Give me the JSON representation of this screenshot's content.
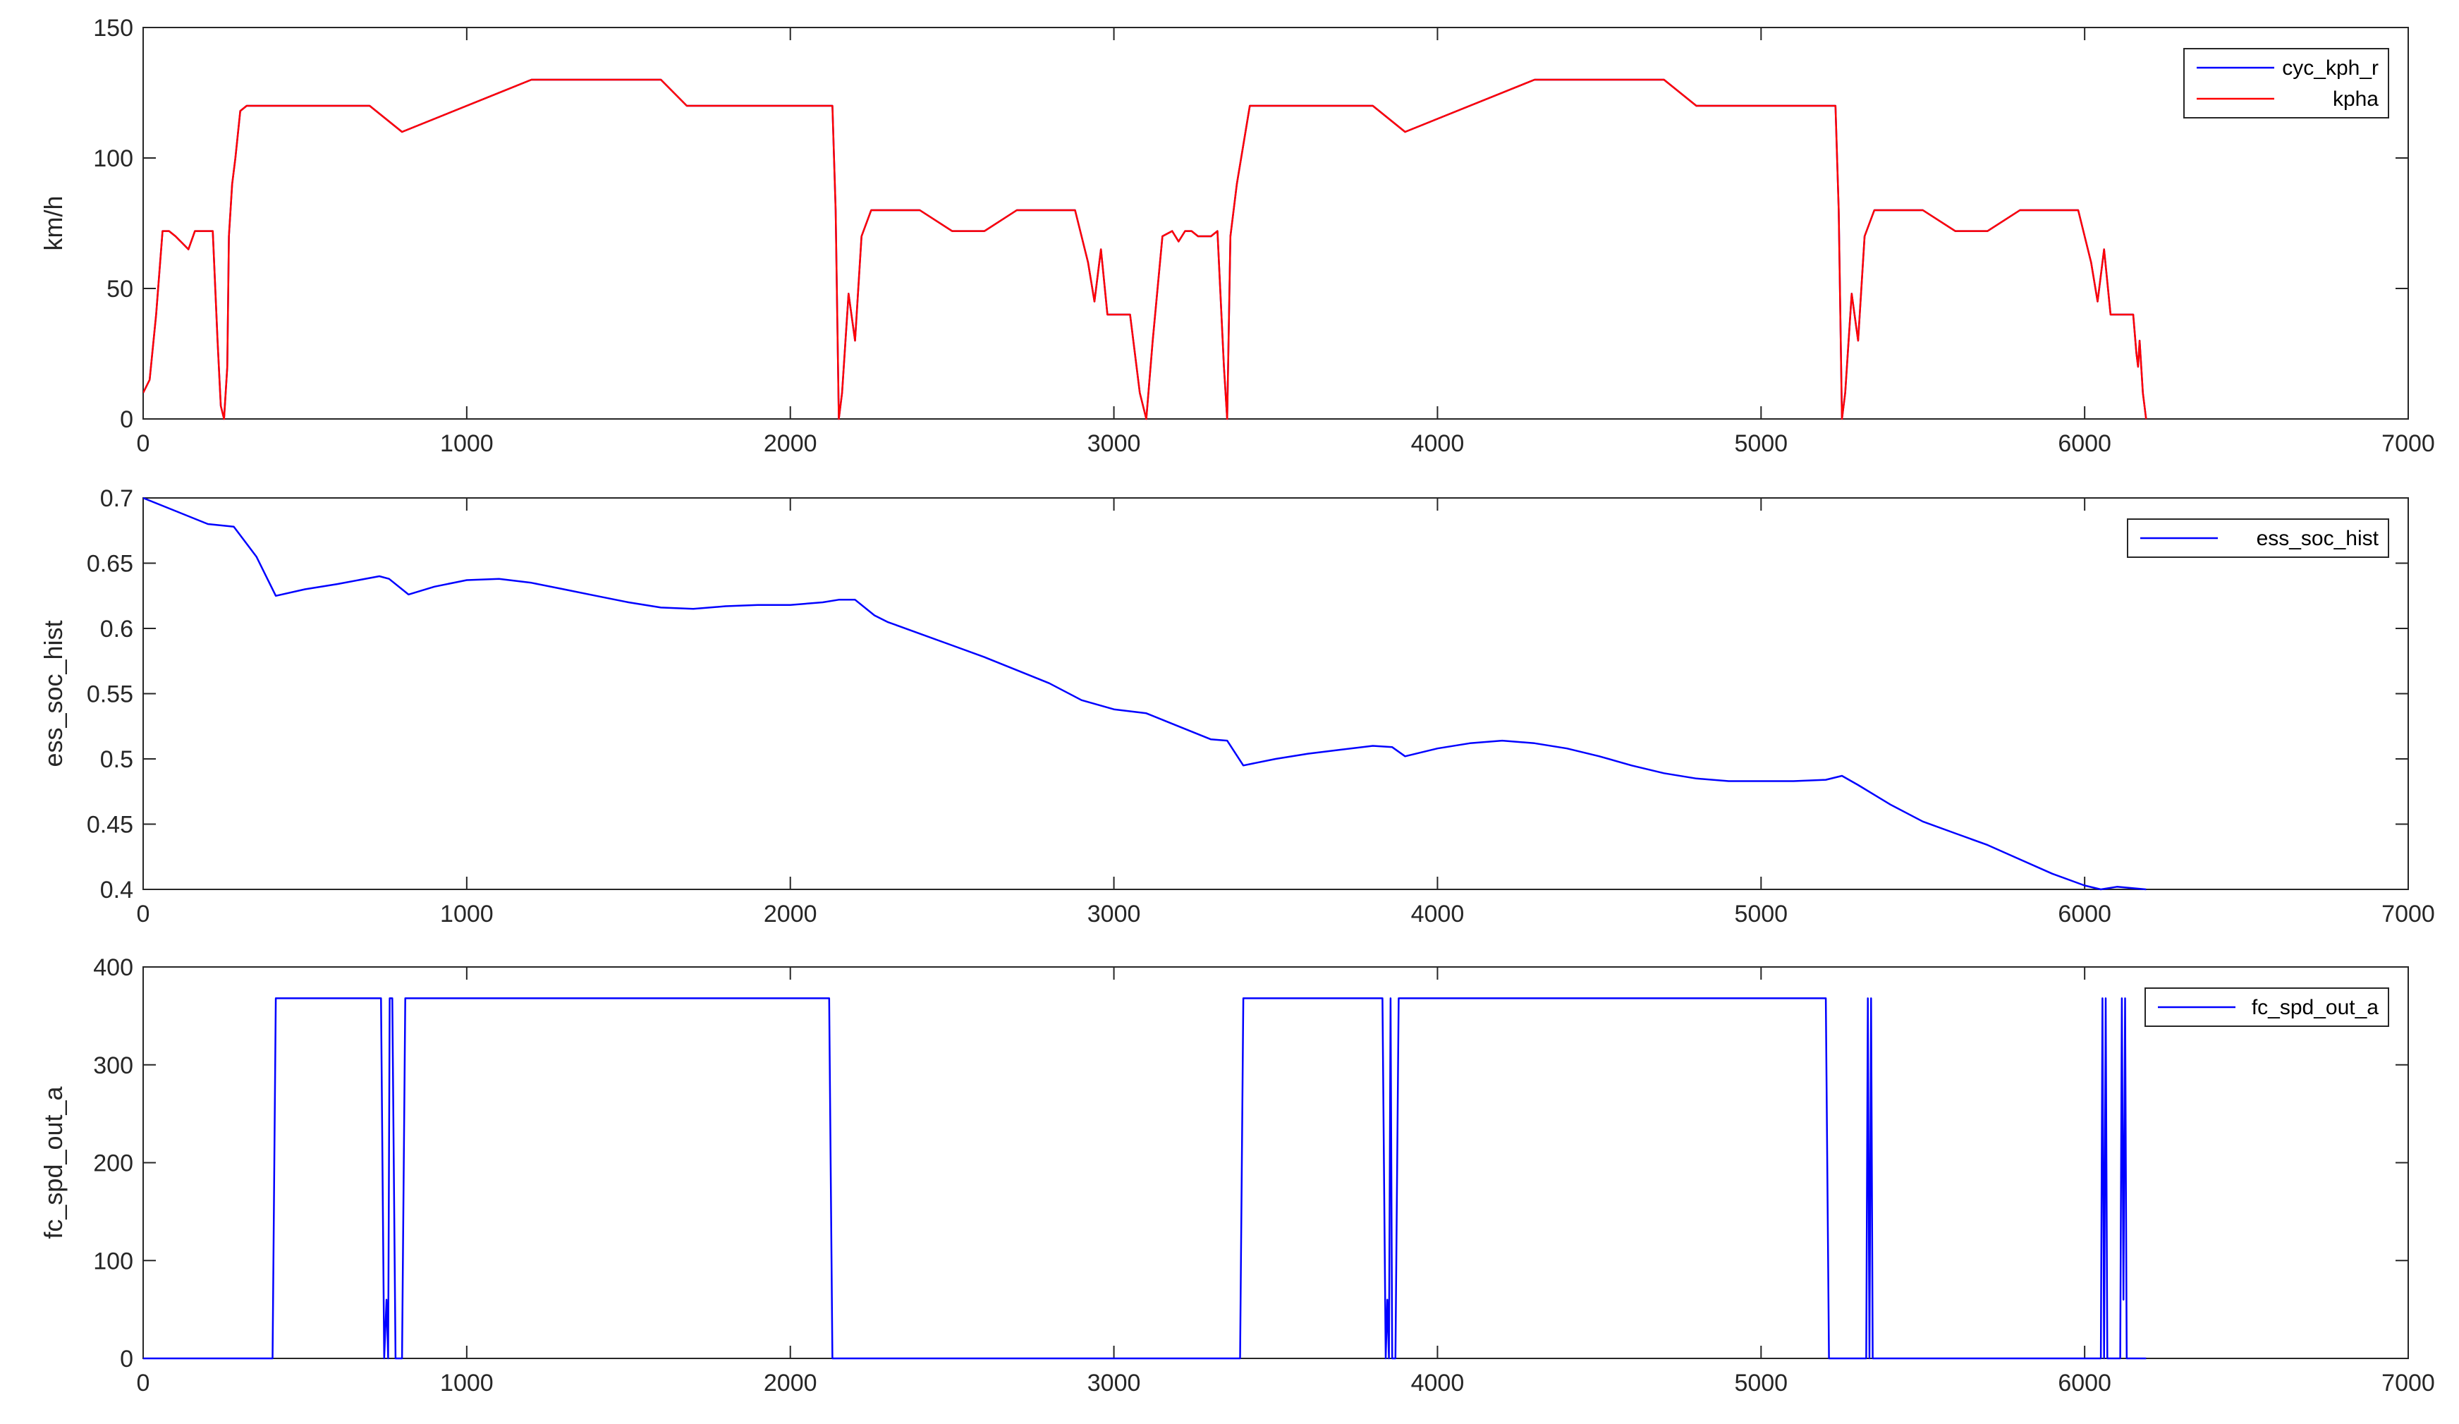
{
  "chart_data": [
    {
      "type": "line",
      "ylabel": "km/h",
      "xlabel": "",
      "xlim": [
        0,
        7000
      ],
      "ylim": [
        0,
        150
      ],
      "xticks": [
        0,
        1000,
        2000,
        3000,
        4000,
        5000,
        6000,
        7000
      ],
      "yticks": [
        0,
        50,
        100,
        150
      ],
      "grid": false,
      "legend_position": "top-right",
      "series": [
        {
          "name": "cyc_kph_r",
          "color": "#0000ff",
          "x": [
            0,
            20,
            40,
            60,
            80,
            100,
            140,
            160,
            180,
            200,
            215,
            230,
            240,
            250,
            260,
            265,
            275,
            285,
            300,
            320,
            700,
            800,
            900,
            1200,
            1600,
            1680,
            1700,
            2100,
            2130,
            2140,
            2150,
            2160,
            2180,
            2200,
            2220,
            2250,
            2400,
            2500,
            2600,
            2700,
            2880,
            2920,
            2940,
            2960,
            2980,
            3050,
            3080,
            3100,
            3120,
            3150,
            3180,
            3200,
            3220,
            3240,
            3260,
            3300,
            3320,
            3340,
            3350,
            3360,
            3380,
            3420,
            3800,
            3900,
            4300,
            4700,
            4800,
            5200,
            5230,
            5240,
            5250,
            5260,
            5280,
            5300,
            5320,
            5350,
            5500,
            5600,
            5700,
            5800,
            5980,
            6020,
            6040,
            6060,
            6080,
            6150,
            6160,
            6165,
            6170,
            6180,
            6190
          ],
          "y": [
            10,
            15,
            40,
            72,
            72,
            70,
            65,
            72,
            72,
            72,
            72,
            30,
            5,
            0,
            20,
            70,
            90,
            100,
            118,
            120,
            120,
            110,
            115,
            130,
            130,
            120,
            120,
            120,
            120,
            80,
            0,
            10,
            48,
            30,
            70,
            80,
            80,
            72,
            72,
            80,
            80,
            60,
            45,
            65,
            40,
            40,
            10,
            0,
            30,
            70,
            72,
            68,
            72,
            72,
            70,
            70,
            72,
            20,
            0,
            70,
            90,
            120,
            120,
            110,
            130,
            130,
            120,
            120,
            120,
            80,
            0,
            10,
            48,
            30,
            70,
            80,
            80,
            72,
            72,
            80,
            80,
            60,
            45,
            65,
            40,
            40,
            25,
            20,
            30,
            10,
            0
          ]
        },
        {
          "name": "kpha",
          "color": "#ff0000",
          "x": [
            0,
            20,
            40,
            60,
            80,
            100,
            140,
            160,
            180,
            200,
            215,
            230,
            240,
            250,
            260,
            265,
            275,
            285,
            300,
            320,
            700,
            800,
            900,
            1200,
            1600,
            1680,
            1700,
            2100,
            2130,
            2140,
            2150,
            2160,
            2180,
            2200,
            2220,
            2250,
            2400,
            2500,
            2600,
            2700,
            2880,
            2920,
            2940,
            2960,
            2980,
            3050,
            3080,
            3100,
            3120,
            3150,
            3180,
            3200,
            3220,
            3240,
            3260,
            3300,
            3320,
            3340,
            3350,
            3360,
            3380,
            3420,
            3800,
            3900,
            4300,
            4700,
            4800,
            5200,
            5230,
            5240,
            5250,
            5260,
            5280,
            5300,
            5320,
            5350,
            5500,
            5600,
            5700,
            5800,
            5980,
            6020,
            6040,
            6060,
            6080,
            6150,
            6160,
            6165,
            6170,
            6180,
            6190
          ],
          "y": [
            10,
            15,
            40,
            72,
            72,
            70,
            65,
            72,
            72,
            72,
            72,
            30,
            5,
            0,
            20,
            70,
            90,
            100,
            118,
            120,
            120,
            110,
            115,
            130,
            130,
            120,
            120,
            120,
            120,
            80,
            0,
            10,
            48,
            30,
            70,
            80,
            80,
            72,
            72,
            80,
            80,
            60,
            45,
            65,
            40,
            40,
            10,
            0,
            30,
            70,
            72,
            68,
            72,
            72,
            70,
            70,
            72,
            20,
            0,
            70,
            90,
            120,
            120,
            110,
            130,
            130,
            120,
            120,
            120,
            80,
            0,
            10,
            48,
            30,
            70,
            80,
            80,
            72,
            72,
            80,
            80,
            60,
            45,
            65,
            40,
            40,
            25,
            20,
            30,
            10,
            0
          ]
        }
      ]
    },
    {
      "type": "line",
      "ylabel": "ess_soc_hist",
      "xlabel": "",
      "xlim": [
        0,
        7000
      ],
      "ylim": [
        0.4,
        0.7
      ],
      "xticks": [
        0,
        1000,
        2000,
        3000,
        4000,
        5000,
        6000,
        7000
      ],
      "yticks": [
        0.4,
        0.45,
        0.5,
        0.55,
        0.6,
        0.65,
        0.7
      ],
      "grid": false,
      "legend_position": "top-right",
      "series": [
        {
          "name": "ess_soc_hist",
          "color": "#0000ff",
          "x": [
            0,
            100,
            200,
            280,
            350,
            410,
            500,
            600,
            730,
            760,
            820,
            900,
            1000,
            1100,
            1200,
            1300,
            1400,
            1500,
            1600,
            1700,
            1800,
            1900,
            2000,
            2100,
            2150,
            2200,
            2260,
            2300,
            2400,
            2500,
            2600,
            2700,
            2800,
            2900,
            3000,
            3100,
            3200,
            3300,
            3350,
            3400,
            3500,
            3600,
            3700,
            3800,
            3860,
            3900,
            4000,
            4100,
            4200,
            4300,
            4400,
            4500,
            4600,
            4700,
            4800,
            4900,
            5000,
            5100,
            5200,
            5250,
            5300,
            5400,
            5500,
            5600,
            5700,
            5800,
            5900,
            6000,
            6050,
            6100,
            6190
          ],
          "y": [
            0.7,
            0.69,
            0.68,
            0.678,
            0.655,
            0.625,
            0.63,
            0.634,
            0.64,
            0.638,
            0.626,
            0.632,
            0.637,
            0.638,
            0.635,
            0.63,
            0.625,
            0.62,
            0.616,
            0.615,
            0.617,
            0.618,
            0.618,
            0.62,
            0.622,
            0.622,
            0.61,
            0.605,
            0.596,
            0.587,
            0.578,
            0.568,
            0.558,
            0.545,
            0.538,
            0.535,
            0.525,
            0.515,
            0.514,
            0.495,
            0.5,
            0.504,
            0.507,
            0.51,
            0.509,
            0.502,
            0.508,
            0.512,
            0.514,
            0.512,
            0.508,
            0.502,
            0.495,
            0.489,
            0.485,
            0.483,
            0.483,
            0.483,
            0.484,
            0.487,
            0.48,
            0.465,
            0.452,
            0.443,
            0.434,
            0.423,
            0.412,
            0.403,
            0.4,
            0.402,
            0.4
          ]
        }
      ]
    },
    {
      "type": "line",
      "ylabel": "fc_spd_out_a",
      "xlabel": "",
      "xlim": [
        0,
        7000
      ],
      "ylim": [
        0,
        400
      ],
      "xticks": [
        0,
        1000,
        2000,
        3000,
        4000,
        5000,
        6000,
        7000
      ],
      "yticks": [
        0,
        100,
        200,
        300,
        400
      ],
      "grid": false,
      "legend_position": "top-right",
      "series": [
        {
          "name": "fc_spd_out_a",
          "color": "#0000ff",
          "x": [
            0,
            400,
            410,
            735,
            745,
            752,
            757,
            762,
            770,
            780,
            800,
            810,
            2120,
            2130,
            3390,
            3400,
            3830,
            3840,
            3845,
            3850,
            3855,
            3860,
            3870,
            3880,
            3890,
            5200,
            5210,
            5325,
            5330,
            5335,
            5340,
            5345,
            5350,
            6050,
            6055,
            6060,
            6065,
            6070,
            6075,
            6080,
            6110,
            6115,
            6120,
            6125,
            6130,
            6140,
            6190
          ],
          "y": [
            0,
            0,
            368,
            368,
            0,
            60,
            0,
            368,
            368,
            0,
            0,
            368,
            368,
            0,
            0,
            368,
            368,
            0,
            60,
            0,
            368,
            0,
            0,
            368,
            368,
            368,
            0,
            0,
            368,
            0,
            368,
            0,
            0,
            0,
            368,
            0,
            368,
            0,
            0,
            0,
            0,
            368,
            60,
            368,
            0,
            0,
            0
          ]
        }
      ]
    }
  ]
}
